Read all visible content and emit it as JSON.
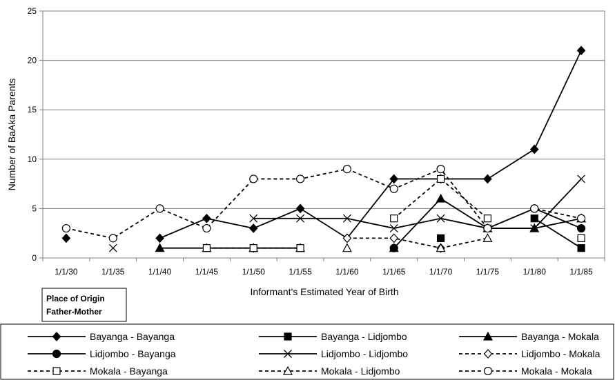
{
  "chart_data": {
    "type": "line",
    "title": "",
    "xlabel": "Informant's Estimated Year of Birth",
    "ylabel": "Number of BaAka Parents",
    "ylim": [
      0,
      25
    ],
    "yticks": [
      0,
      5,
      10,
      15,
      20,
      25
    ],
    "grid": "horizontal",
    "legend_position": "bottom",
    "categories": [
      "1/1/30",
      "1/1/35",
      "1/1/40",
      "1/1/45",
      "1/1/50",
      "1/1/55",
      "1/1/60",
      "1/1/65",
      "1/1/70",
      "1/1/75",
      "1/1/80",
      "1/1/85"
    ],
    "legend_title_lines": [
      "Place of Origin",
      "Father-Mother"
    ],
    "series": [
      {
        "name": "Bayanga - Bayanga",
        "marker": "diamond",
        "dash": "solid",
        "values": [
          2,
          null,
          2,
          4,
          3,
          5,
          2,
          8,
          8,
          8,
          11,
          21
        ]
      },
      {
        "name": "Bayanga - Lidjombo",
        "marker": "square",
        "dash": "solid",
        "values": [
          null,
          null,
          null,
          null,
          null,
          null,
          null,
          null,
          2,
          null,
          4,
          1
        ]
      },
      {
        "name": "Bayanga - Mokala",
        "marker": "triangle",
        "dash": "solid",
        "values": [
          null,
          null,
          1,
          1,
          1,
          1,
          null,
          1,
          6,
          3,
          3,
          4
        ]
      },
      {
        "name": "Lidjombo - Bayanga",
        "marker": "circle",
        "dash": "solid",
        "values": [
          null,
          null,
          null,
          null,
          null,
          null,
          null,
          1,
          null,
          3,
          5,
          3
        ]
      },
      {
        "name": "Lidjombo - Lidjombo",
        "marker": "x",
        "dash": "solid",
        "values": [
          null,
          1,
          null,
          null,
          4,
          4,
          4,
          3,
          4,
          3,
          3,
          8
        ]
      },
      {
        "name": "Lidjombo - Mokala",
        "marker": "open-diamond",
        "dash": "dashed",
        "values": [
          null,
          null,
          null,
          null,
          1,
          null,
          2,
          2,
          1,
          null,
          null,
          null
        ]
      },
      {
        "name": "Mokala - Bayanga",
        "marker": "open-square",
        "dash": "dashed",
        "values": [
          null,
          null,
          null,
          1,
          1,
          1,
          null,
          4,
          8,
          4,
          null,
          2
        ]
      },
      {
        "name": "Mokala - Lidjombo",
        "marker": "open-triangle",
        "dash": "dashed",
        "values": [
          null,
          null,
          null,
          null,
          null,
          null,
          1,
          null,
          1,
          2,
          null,
          null
        ]
      },
      {
        "name": "Mokala - Mokala",
        "marker": "open-circle",
        "dash": "dashed",
        "values": [
          3,
          2,
          5,
          3,
          8,
          8,
          9,
          7,
          9,
          3,
          5,
          4
        ]
      }
    ]
  }
}
